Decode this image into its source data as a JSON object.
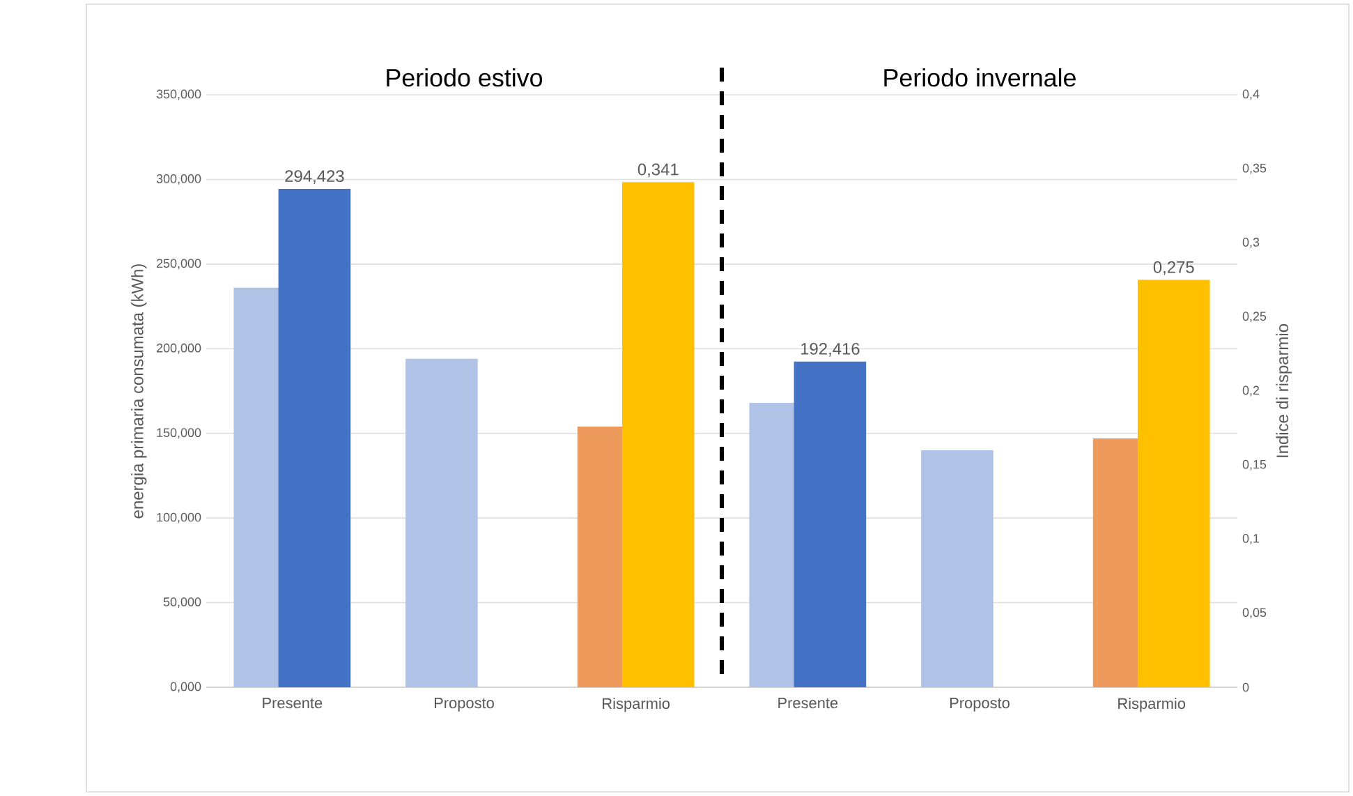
{
  "chart_data": {
    "type": "bar",
    "categories": [
      "Presente",
      "Proposto",
      "Risparmio",
      "Presente",
      "Proposto",
      "Risparmio"
    ],
    "ylabel": "energia primaria consumata (kWh)",
    "y2label": "Indice di risparmio",
    "annotations": [
      "Periodo estivo",
      "Periodo invernale"
    ],
    "series": [
      {
        "color": "#b0c3e6",
        "values": [
          236,
          194,
          null,
          168,
          140,
          null
        ]
      },
      {
        "color": "#4472c4",
        "values": [
          294.423,
          null,
          null,
          192.416,
          null,
          null
        ],
        "value_labels": [
          "294,423",
          null,
          null,
          "192,416",
          null,
          null
        ]
      },
      {
        "color": "#ee9a5c",
        "axis": "y2",
        "values": [
          null,
          null,
          0.176,
          null,
          null,
          0.168
        ]
      },
      {
        "color": "#ffc000",
        "axis": "y2",
        "values": [
          null,
          null,
          0.341,
          null,
          null,
          0.275
        ],
        "value_labels": [
          null,
          null,
          "0,341",
          null,
          null,
          "0,275"
        ]
      }
    ],
    "ylim": [
      0,
      350
    ],
    "yticks": [
      {
        "value": 0,
        "label": "0,000"
      },
      {
        "value": 50,
        "label": "50,000"
      },
      {
        "value": 100,
        "label": "100,000"
      },
      {
        "value": 150,
        "label": "150,000"
      },
      {
        "value": 200,
        "label": "200,000"
      },
      {
        "value": 250,
        "label": "250,000"
      },
      {
        "value": 300,
        "label": "300,000"
      },
      {
        "value": 350,
        "label": "350,000"
      }
    ],
    "y2lim": [
      0,
      0.4
    ],
    "y2ticks": [
      0,
      {
        "value": 0.05,
        "label": "0,05"
      },
      {
        "value": 0.1,
        "label": "0,1"
      },
      {
        "value": 0.15,
        "label": "0,15"
      },
      {
        "value": 0.2,
        "label": "0,2"
      },
      {
        "value": 0.25,
        "label": "0,25"
      },
      {
        "value": 0.3,
        "label": "0,3"
      },
      {
        "value": 0.35,
        "label": "0,35"
      },
      {
        "value": 0.4,
        "label": "0,4"
      }
    ],
    "grid": "y"
  }
}
